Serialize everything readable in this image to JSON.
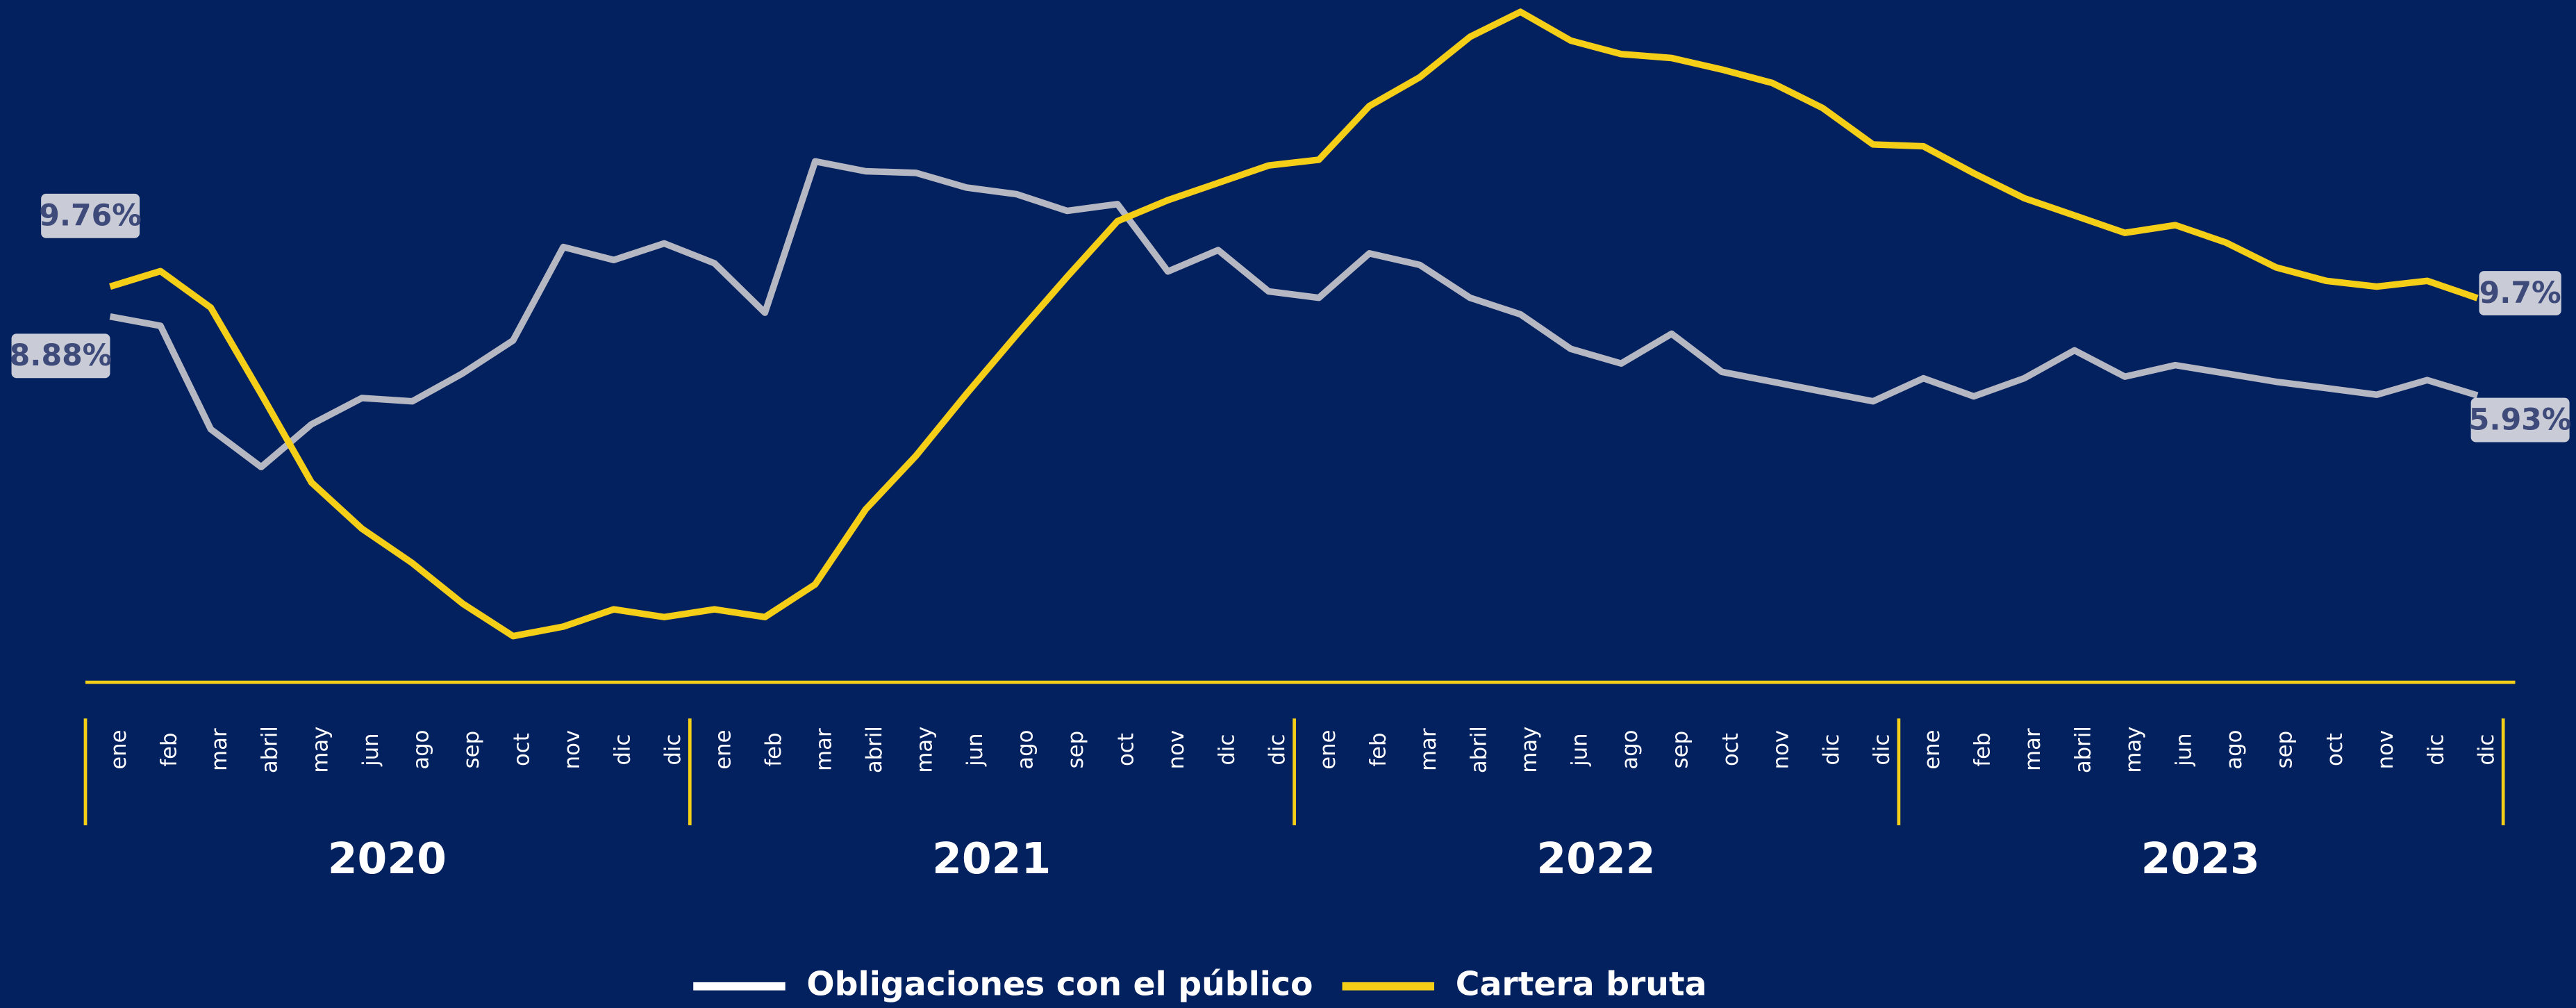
{
  "chart_data": {
    "type": "line",
    "categories": [
      "ene",
      "feb",
      "mar",
      "abril",
      "may",
      "jun",
      "ago",
      "sep",
      "oct",
      "nov",
      "dic",
      "dic",
      "ene",
      "feb",
      "mar",
      "abril",
      "may",
      "jun",
      "ago",
      "sep",
      "oct",
      "nov",
      "dic",
      "dic",
      "ene",
      "feb",
      "mar",
      "abril",
      "may",
      "jun",
      "ago",
      "sep",
      "oct",
      "nov",
      "dic",
      "dic",
      "ene",
      "feb",
      "mar",
      "abril",
      "may",
      "jun",
      "ago",
      "sep",
      "oct",
      "nov",
      "dic",
      "dic"
    ],
    "year_groups": [
      "2020",
      "2021",
      "2022",
      "2023"
    ],
    "ylim": [
      -4.8,
      20.7
    ],
    "y2lim": [
      7.7,
      11.25
    ],
    "legend": "bottom",
    "series": [
      {
        "name": "Obligaciones con el público",
        "color": "#b5b7c3",
        "values": [
          8.88,
          8.53,
          4.66,
          3.25,
          4.85,
          5.83,
          5.71,
          6.75,
          7.98,
          11.48,
          10.99,
          11.61,
          10.87,
          9.02,
          14.68,
          14.31,
          14.25,
          13.7,
          13.45,
          12.83,
          13.08,
          10.56,
          11.36,
          9.82,
          9.58,
          11.24,
          10.81,
          9.58,
          8.96,
          7.67,
          7.12,
          8.23,
          6.81,
          6.44,
          6.07,
          5.71,
          6.57,
          5.89,
          6.57,
          7.61,
          6.63,
          7.06,
          6.75,
          6.44,
          6.2,
          5.95,
          6.5,
          5.93
        ],
        "value_labels": [
          "8.88%",
          null,
          null,
          null,
          null,
          null,
          null,
          null,
          null,
          null,
          null,
          null,
          null,
          null,
          null,
          null,
          null,
          null,
          null,
          null,
          null,
          null,
          null,
          null,
          null,
          null,
          null,
          null,
          null,
          null,
          null,
          null,
          null,
          null,
          null,
          null,
          null,
          null,
          null,
          null,
          null,
          null,
          null,
          null,
          null,
          null,
          null,
          "5.93%"
        ]
      },
      {
        "name": "Cartera bruta",
        "color": "#f5cf17",
        "axis": "y2",
        "values": [
          9.76,
          9.84,
          9.65,
          9.2,
          8.74,
          8.5,
          8.32,
          8.11,
          7.94,
          7.99,
          8.08,
          8.04,
          8.08,
          8.04,
          8.21,
          8.6,
          8.88,
          9.2,
          9.51,
          9.81,
          10.1,
          10.21,
          10.3,
          10.39,
          10.42,
          10.7,
          10.85,
          11.06,
          11.19,
          11.04,
          10.97,
          10.95,
          10.89,
          10.82,
          10.69,
          10.5,
          10.49,
          10.35,
          10.22,
          10.13,
          10.04,
          10.08,
          9.99,
          9.86,
          9.79,
          9.76,
          9.79,
          9.7
        ],
        "value_labels": [
          "9.76%",
          null,
          null,
          null,
          null,
          null,
          null,
          null,
          null,
          null,
          null,
          null,
          null,
          null,
          null,
          null,
          null,
          null,
          null,
          null,
          null,
          null,
          null,
          null,
          null,
          null,
          null,
          null,
          null,
          null,
          null,
          null,
          null,
          null,
          null,
          null,
          null,
          null,
          null,
          null,
          null,
          null,
          null,
          null,
          null,
          null,
          null,
          "9.7%"
        ]
      }
    ]
  }
}
